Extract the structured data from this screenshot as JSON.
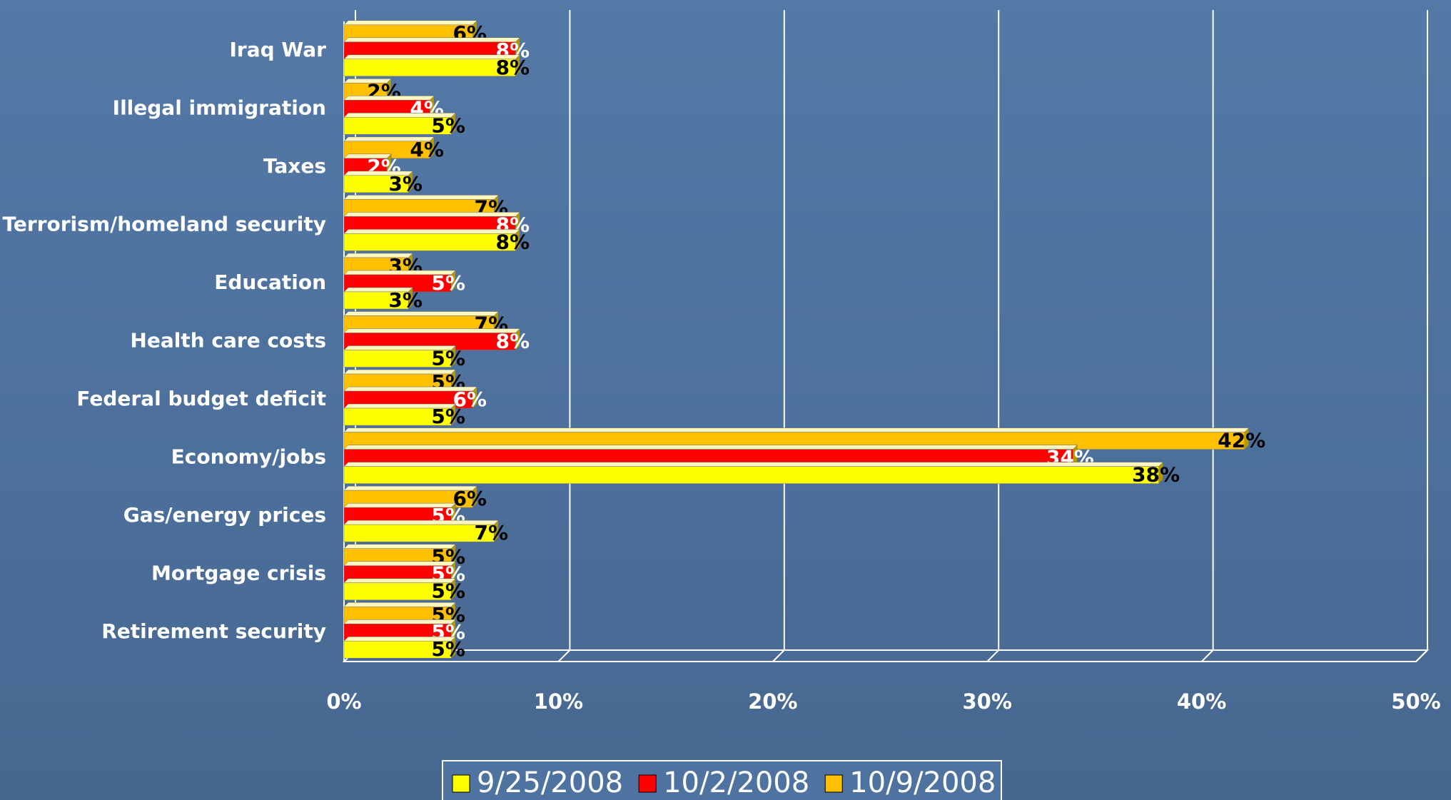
{
  "chart_data": {
    "type": "bar",
    "orientation": "horizontal",
    "categories": [
      "Iraq War",
      "Illegal immigration",
      "Taxes",
      "Terrorism/homeland security",
      "Education",
      "Health care costs",
      "Federal budget deficit",
      "Economy/jobs",
      "Gas/energy prices",
      "Mortgage crisis",
      "Retirement security"
    ],
    "series": [
      {
        "name": "9/25/2008",
        "color": "#ffff00",
        "values": [
          8,
          5,
          3,
          8,
          3,
          5,
          5,
          38,
          7,
          5,
          5
        ],
        "value_labels": [
          "8%",
          "5%",
          "3%",
          "8%",
          "3%",
          "5%",
          "5%",
          "38%",
          "7%",
          "5%",
          "5%"
        ]
      },
      {
        "name": "10/2/2008",
        "color": "#ff0000",
        "values": [
          8,
          4,
          2,
          8,
          5,
          8,
          6,
          34,
          5,
          5,
          5
        ],
        "value_labels": [
          "8%",
          "4%",
          "2%",
          "8%",
          "5%",
          "8%",
          "6%",
          "34%",
          "5%",
          "5%",
          "5%"
        ]
      },
      {
        "name": "10/9/2008",
        "color": "#ffc000",
        "values": [
          6,
          2,
          4,
          7,
          3,
          7,
          5,
          42,
          6,
          5,
          5
        ],
        "value_labels": [
          "6%",
          "2%",
          "4%",
          "7%",
          "3%",
          "7%",
          "5%",
          "42%",
          "6%",
          "5%",
          "5%"
        ]
      }
    ],
    "xlim": [
      0,
      50
    ],
    "xticks": [
      {
        "value": 0,
        "label": "0%"
      },
      {
        "value": 10,
        "label": "10%"
      },
      {
        "value": 20,
        "label": "20%"
      },
      {
        "value": 30,
        "label": "30%"
      },
      {
        "value": 40,
        "label": "40%"
      },
      {
        "value": 50,
        "label": "50%"
      }
    ],
    "grid": true,
    "legend": "bottom"
  }
}
